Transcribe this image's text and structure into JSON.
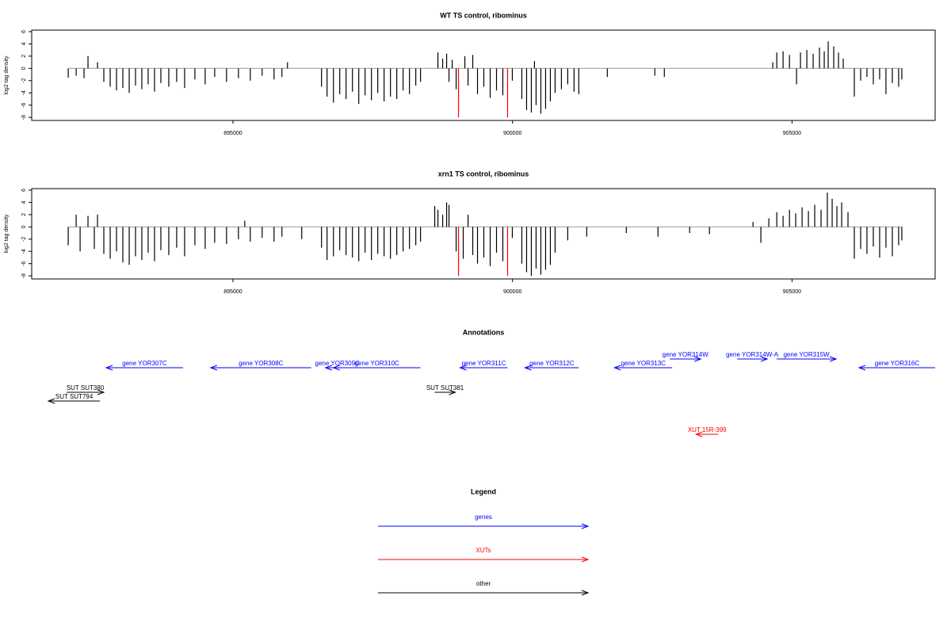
{
  "chart_data": [
    {
      "type": "bar",
      "title": "WT TS control, ribominus",
      "ylabel": "log2 tag density",
      "xlim": [
        891400,
        907560
      ],
      "ylim": [
        -8.5,
        6.25
      ],
      "xticks": [
        895000,
        900000,
        905000
      ],
      "yticks": [
        -8,
        -6,
        -4,
        -2,
        0,
        2,
        4,
        6
      ],
      "series": [
        {
          "color": "#000000",
          "x": [
            892053,
            892195,
            892336,
            892407,
            892577,
            892690,
            892804,
            892917,
            893030,
            893144,
            893257,
            893370,
            893483,
            893597,
            893710,
            893852,
            893993,
            894135,
            894319,
            894503,
            894673,
            894885,
            895098,
            895310,
            895522,
            895735,
            895876,
            895975,
            896584,
            896683,
            896797,
            896910,
            897023,
            897137,
            897250,
            897363,
            897477,
            897590,
            897703,
            897817,
            897930,
            898043,
            898157,
            898270,
            898355,
            898666,
            898751,
            898822,
            898864,
            898921,
            898992,
            899148,
            899205,
            899289,
            899374,
            899487,
            899601,
            899714,
            899827,
            899997,
            900167,
            900252,
            900337,
            900393,
            900422,
            900507,
            900592,
            900677,
            900762,
            900875,
            900988,
            901101,
            901186,
            901696,
            902546,
            902716,
            904656,
            904727,
            904840,
            904954,
            905081,
            905151,
            905265,
            905378,
            905491,
            905576,
            905647,
            905746,
            905831,
            905916,
            906114,
            906227,
            906340,
            906454,
            906567,
            906680,
            906794,
            906907,
            906964
          ],
          "values": [
            -1.5,
            -1.2,
            -1.6,
            2.0,
            1.0,
            -2.2,
            -3.0,
            -3.6,
            -3.2,
            -4.0,
            -2.8,
            -3.4,
            -2.6,
            -3.8,
            -2.4,
            -3.0,
            -2.2,
            -3.2,
            -1.8,
            -2.6,
            -1.4,
            -2.2,
            -1.6,
            -2.0,
            -1.2,
            -1.8,
            -1.4,
            1.0,
            -3.0,
            -4.6,
            -5.6,
            -4.2,
            -5.0,
            -3.8,
            -5.8,
            -4.4,
            -5.2,
            -4.0,
            -5.4,
            -4.6,
            -5.0,
            -3.6,
            -4.2,
            -2.8,
            -2.2,
            2.6,
            1.6,
            2.4,
            -2.2,
            1.4,
            -3.4,
            2.0,
            -2.8,
            2.2,
            -4.2,
            -3.0,
            -4.8,
            -3.6,
            -4.4,
            -2.0,
            -5.0,
            -6.8,
            -7.2,
            1.2,
            -6.0,
            -7.4,
            -6.6,
            -5.4,
            -4.0,
            -3.4,
            -2.6,
            -3.8,
            -4.2,
            -1.4,
            -1.2,
            -1.4,
            1.0,
            2.6,
            2.8,
            2.2,
            -2.6,
            2.6,
            3.0,
            2.4,
            3.4,
            2.8,
            4.4,
            3.6,
            2.6,
            1.6,
            -4.6,
            -2.0,
            -1.4,
            -2.6,
            -1.8,
            -4.2,
            -2.4,
            -3.0,
            -1.8
          ]
        },
        {
          "color": "#ff0000",
          "x": [
            899034,
            899912
          ],
          "values": [
            -8,
            -8
          ]
        }
      ]
    },
    {
      "type": "bar",
      "title": "xrn1 TS control, ribominus",
      "ylabel": "log2 tag density",
      "xlim": [
        891400,
        907560
      ],
      "ylim": [
        -8.5,
        6.25
      ],
      "xticks": [
        895000,
        900000,
        905000
      ],
      "yticks": [
        -8,
        -6,
        -4,
        -2,
        0,
        2,
        4,
        6
      ],
      "series": [
        {
          "color": "#000000",
          "x": [
            892053,
            892195,
            892266,
            892407,
            892520,
            892577,
            892690,
            892804,
            892917,
            893030,
            893144,
            893257,
            893370,
            893483,
            893597,
            893710,
            893852,
            893993,
            894135,
            894319,
            894503,
            894673,
            894885,
            895098,
            895211,
            895310,
            895522,
            895735,
            895876,
            896230,
            896584,
            896683,
            896797,
            896910,
            897023,
            897137,
            897250,
            897363,
            897477,
            897590,
            897703,
            897817,
            897930,
            898043,
            898157,
            898270,
            898355,
            898609,
            898666,
            898751,
            898822,
            898864,
            898992,
            899119,
            899205,
            899289,
            899374,
            899487,
            899601,
            899714,
            899827,
            899997,
            900167,
            900252,
            900337,
            900422,
            900507,
            900592,
            900677,
            900762,
            900988,
            901328,
            902036,
            902602,
            903169,
            903523,
            904302,
            904443,
            904585,
            904727,
            904840,
            904954,
            905066,
            905180,
            905293,
            905406,
            905519,
            905632,
            905718,
            905803,
            905888,
            906001,
            906114,
            906227,
            906340,
            906454,
            906567,
            906680,
            906794,
            906907,
            906964
          ],
          "values": [
            -3.0,
            2.0,
            -4.0,
            1.8,
            -3.6,
            2.0,
            -4.4,
            -5.2,
            -4.0,
            -5.8,
            -6.2,
            -4.8,
            -5.4,
            -4.2,
            -5.6,
            -3.8,
            -4.6,
            -3.4,
            -4.8,
            -3.0,
            -3.6,
            -2.6,
            -2.8,
            -2.0,
            1.0,
            -2.4,
            -1.8,
            -2.4,
            -1.6,
            -2.0,
            -3.4,
            -5.4,
            -4.8,
            -3.8,
            -4.6,
            -5.0,
            -5.6,
            -4.2,
            -5.4,
            -4.4,
            -4.8,
            -5.2,
            -4.6,
            -4.0,
            -3.6,
            -3.0,
            -2.4,
            3.4,
            2.8,
            2.0,
            4.0,
            3.6,
            -4.0,
            -5.2,
            2.0,
            -4.6,
            -6.0,
            -5.0,
            -6.4,
            -4.2,
            -5.6,
            -1.8,
            -6.0,
            -7.4,
            -8.0,
            -6.8,
            -7.8,
            -7.0,
            -6.2,
            -4.2,
            -2.2,
            -1.6,
            -1.0,
            -1.6,
            -1.0,
            -1.2,
            0.8,
            -2.6,
            1.4,
            2.4,
            1.8,
            2.8,
            2.2,
            3.2,
            2.6,
            3.6,
            2.8,
            5.6,
            4.6,
            3.4,
            4.0,
            2.4,
            -5.2,
            -3.6,
            -4.4,
            -3.2,
            -5.0,
            -3.4,
            -4.8,
            -3.0,
            -2.2
          ]
        },
        {
          "color": "#ff0000",
          "x": [
            899034,
            899912
          ],
          "values": [
            -8,
            -8
          ]
        }
      ]
    }
  ],
  "annotations": {
    "title": "Annotations",
    "features": [
      {
        "label": "gene YOR307C",
        "from": 894106,
        "to": 892733,
        "color": "#0000ff"
      },
      {
        "label": "gene YOR308C",
        "from": 896400,
        "to": 894602,
        "color": "#0000ff"
      },
      {
        "label": "gene YOR309C",
        "from": 897080,
        "to": 896655,
        "color": "#0000ff"
      },
      {
        "label": "gene YOR310C",
        "from": 898354,
        "to": 896797,
        "color": "#0000ff"
      },
      {
        "label": "gene YOR311C",
        "from": 899912,
        "to": 899062,
        "color": "#0000ff"
      },
      {
        "label": "gene YOR312C",
        "from": 901186,
        "to": 900223,
        "color": "#0000ff"
      },
      {
        "label": "gene YOR313C",
        "from": 902857,
        "to": 901824,
        "color": "#0000ff"
      },
      {
        "label": "gene YOR314W",
        "from": 902815,
        "to": 903367,
        "color": "#0000ff"
      },
      {
        "label": "gene YOR314W-A",
        "from": 904018,
        "to": 904556,
        "color": "#0000ff"
      },
      {
        "label": "gene YOR315W",
        "from": 904726,
        "to": 905788,
        "color": "#0000ff"
      },
      {
        "label": "gene YOR316C",
        "from": 907559,
        "to": 906199,
        "color": "#0000ff"
      },
      {
        "label": "SUT SUT380",
        "from": 892025,
        "to": 892690,
        "color": "#000000"
      },
      {
        "label": "SUT SUT794",
        "from": 892620,
        "to": 891699,
        "color": "#000000"
      },
      {
        "label": "SUT SUT381",
        "from": 898609,
        "to": 898977,
        "color": "#000000"
      },
      {
        "label": "XUT 15R-399",
        "from": 903679,
        "to": 903282,
        "color": "#ff0000"
      }
    ]
  },
  "legend": {
    "title": "Legend",
    "entries": [
      {
        "label": "genes",
        "color": "#0000ff"
      },
      {
        "label": "XUTs",
        "color": "#ff0000"
      },
      {
        "label": "other",
        "color": "#000000"
      }
    ]
  }
}
